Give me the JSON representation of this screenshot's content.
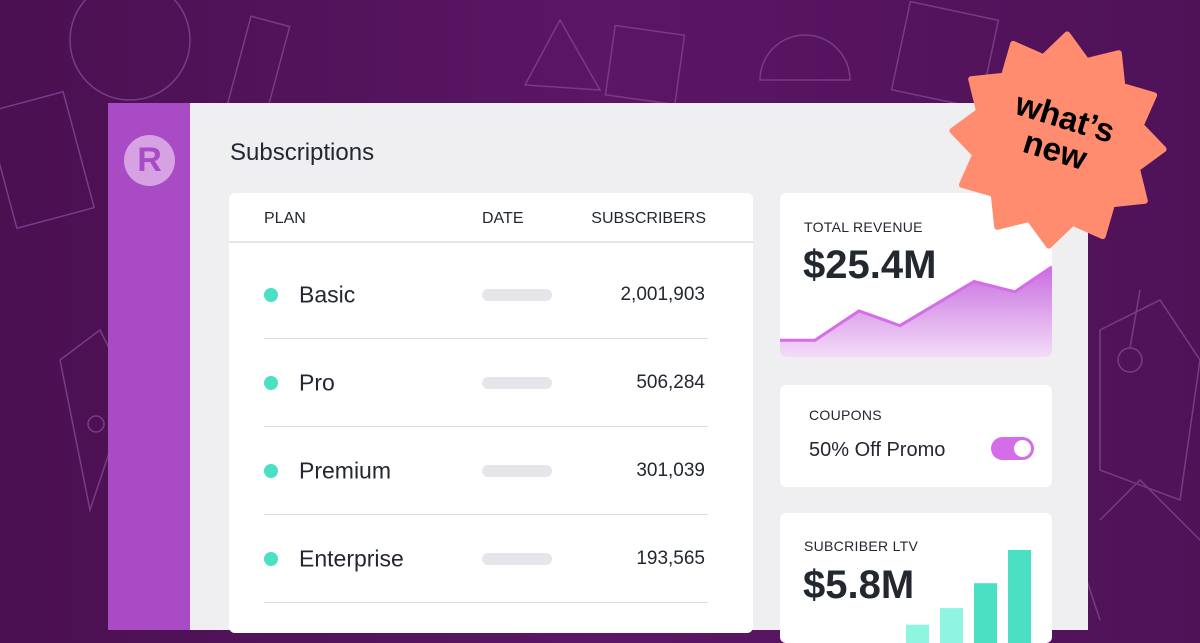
{
  "app": {
    "logo_letter": "R",
    "page_title": "Subscriptions"
  },
  "table": {
    "headers": [
      "PLAN",
      "DATE",
      "SUBSCRIBERS"
    ],
    "rows": [
      {
        "plan": "Basic",
        "subscribers": "2,001,903"
      },
      {
        "plan": "Pro",
        "subscribers": "506,284"
      },
      {
        "plan": "Premium",
        "subscribers": "301,039"
      },
      {
        "plan": "Enterprise",
        "subscribers": "193,565"
      }
    ],
    "status_dot_color": "#4ae0c3"
  },
  "revenue": {
    "label": "TOTAL REVENUE",
    "value": "$25.4M",
    "chart_data": {
      "type": "area",
      "values": [
        1,
        1,
        3,
        2,
        5,
        4.3,
        6
      ],
      "color": "#d56ce8"
    }
  },
  "coupons": {
    "label": "COUPONS",
    "name": "50% Off Promo",
    "toggle_on": true
  },
  "ltv": {
    "label": "SUBCRIBER LTV",
    "value": "$5.8M",
    "chart_data": {
      "type": "bar",
      "values": [
        1,
        3,
        6,
        10
      ],
      "colors": [
        "#8ff5e0",
        "#8ff5e0",
        "#4ae0c3",
        "#4ae0c3"
      ]
    }
  },
  "badge": {
    "line1": "what’s",
    "line2": "new",
    "color": "#ff8c6e"
  }
}
